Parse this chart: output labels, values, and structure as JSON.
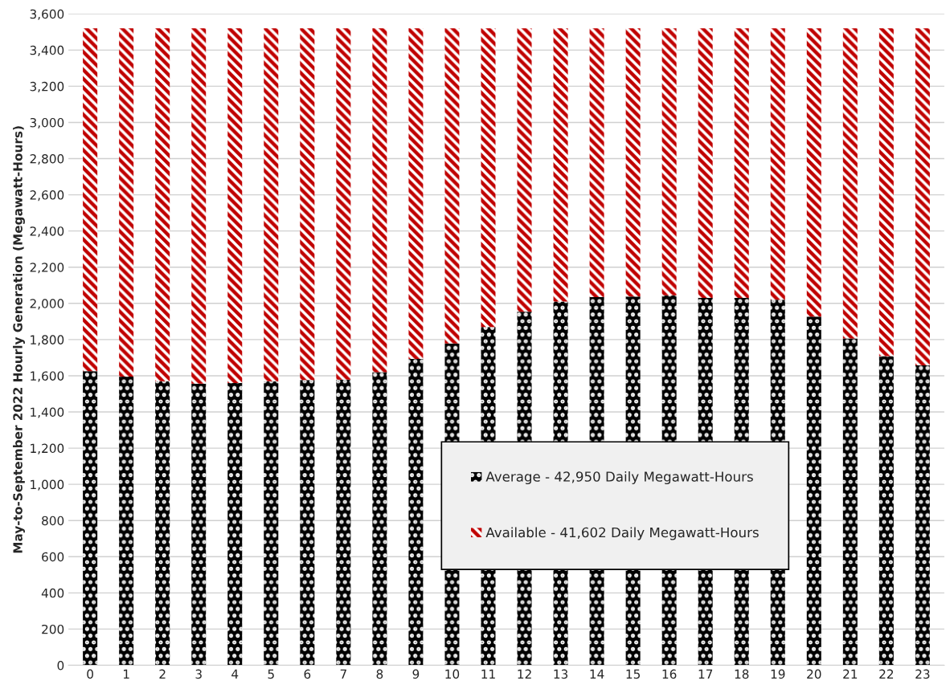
{
  "chart_data": {
    "type": "bar",
    "stacked": true,
    "ylabel": "May-to-September 2022 Hourly Generation (Megawatt-Hours)",
    "categories": [
      "0",
      "1",
      "2",
      "3",
      "4",
      "5",
      "6",
      "7",
      "8",
      "9",
      "10",
      "11",
      "12",
      "13",
      "14",
      "15",
      "16",
      "17",
      "18",
      "19",
      "20",
      "21",
      "22",
      "23"
    ],
    "series": [
      {
        "name": "Average - 42,950 Daily Megawatt-Hours",
        "color": "#000000",
        "values": [
          1625,
          1595,
          1570,
          1557,
          1560,
          1570,
          1576,
          1579,
          1620,
          1693,
          1778,
          1869,
          1954,
          2010,
          2035,
          2038,
          2045,
          2030,
          2030,
          2020,
          1927,
          1806,
          1709,
          1657
        ]
      },
      {
        "name": "Available - 41,602 Daily Megawatt-Hours",
        "color": "#c00000",
        "values": [
          1895,
          1925,
          1950,
          1963,
          1960,
          1950,
          1944,
          1941,
          1900,
          1827,
          1742,
          1651,
          1566,
          1510,
          1485,
          1482,
          1475,
          1490,
          1490,
          1500,
          1593,
          1714,
          1811,
          1863
        ]
      }
    ],
    "ylim": [
      0,
      3600
    ],
    "yticks": [
      0,
      200,
      400,
      600,
      800,
      {
        "value": 1000,
        "label": "1,000"
      },
      {
        "value": 1200,
        "label": "1,200"
      },
      {
        "value": 1400,
        "label": "1,400"
      },
      {
        "value": 1600,
        "label": "1,600"
      },
      {
        "value": 1800,
        "label": "1,800"
      },
      {
        "value": 2000,
        "label": "2,000"
      },
      {
        "value": 2200,
        "label": "2,200"
      },
      {
        "value": 2400,
        "label": "2,400"
      },
      {
        "value": 2600,
        "label": "2,600"
      },
      {
        "value": 2800,
        "label": "2,800"
      },
      {
        "value": 3000,
        "label": "3,000"
      },
      {
        "value": 3200,
        "label": "3,200"
      },
      {
        "value": 3400,
        "label": "3,400"
      },
      {
        "value": 3600,
        "label": "3,600"
      }
    ],
    "grid": "y",
    "legend": "center right"
  }
}
